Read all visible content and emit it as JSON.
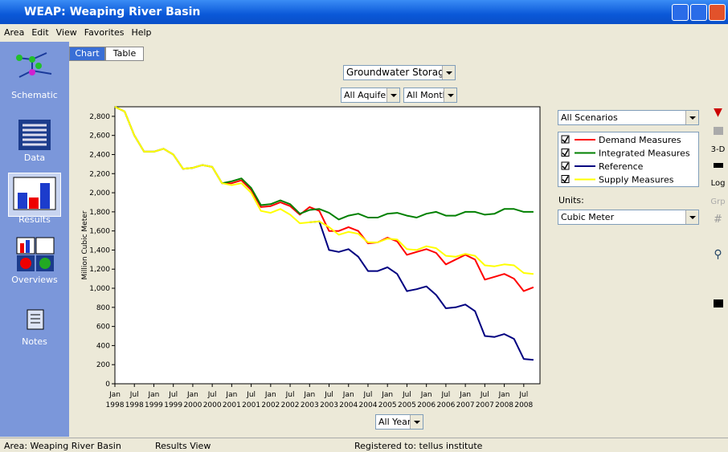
{
  "window": {
    "title": "WEAP: Weaping River Basin"
  },
  "menu": [
    "Area",
    "Edit",
    "View",
    "Favorites",
    "Help"
  ],
  "sidebar": [
    "Schematic",
    "Data",
    "Results",
    "Overviews",
    "Notes"
  ],
  "tabs": [
    "Chart",
    "Table"
  ],
  "controls": {
    "variable": "Groundwater Storage",
    "aquifers": "All Aquifers",
    "months": "All Months",
    "years": "All Years",
    "scenarios": "All Scenarios",
    "units_label": "Units:",
    "units": "Cubic Meter"
  },
  "toolbar": [
    "3-D",
    "Log",
    "Grp"
  ],
  "status": [
    "Area: Weaping River Basin",
    "Results View",
    "Registered to: tellus institute"
  ],
  "chart_data": {
    "type": "line",
    "y_label": "Million Cubic Meter",
    "x": [
      0,
      3,
      6,
      9,
      12,
      15,
      18,
      21,
      24,
      27,
      30,
      33,
      36,
      39,
      42,
      45,
      48,
      51,
      54,
      57,
      60,
      63,
      66,
      69,
      72,
      75,
      78,
      81,
      84,
      87,
      90,
      93,
      96,
      99,
      102,
      105,
      108,
      111,
      114,
      117,
      120,
      123,
      126,
      129
    ],
    "xlim": [
      0,
      131
    ],
    "xticks": [
      {
        "value": 0,
        "label": "Jan",
        "year": "1998"
      },
      {
        "value": 6,
        "label": "Jul",
        "year": "1998"
      },
      {
        "value": 12,
        "label": "Jan",
        "year": "1999"
      },
      {
        "value": 18,
        "label": "Jul",
        "year": "1999"
      },
      {
        "value": 24,
        "label": "Jan",
        "year": "2000"
      },
      {
        "value": 30,
        "label": "Jul",
        "year": "2000"
      },
      {
        "value": 36,
        "label": "Jan",
        "year": "2001"
      },
      {
        "value": 42,
        "label": "Jul",
        "year": "2001"
      },
      {
        "value": 48,
        "label": "Jan",
        "year": "2002"
      },
      {
        "value": 54,
        "label": "Jul",
        "year": "2002"
      },
      {
        "value": 60,
        "label": "Jan",
        "year": "2003"
      },
      {
        "value": 66,
        "label": "Jul",
        "year": "2003"
      },
      {
        "value": 72,
        "label": "Jan",
        "year": "2004"
      },
      {
        "value": 78,
        "label": "Jul",
        "year": "2004"
      },
      {
        "value": 84,
        "label": "Jan",
        "year": "2005"
      },
      {
        "value": 90,
        "label": "Jul",
        "year": "2005"
      },
      {
        "value": 96,
        "label": "Jan",
        "year": "2006"
      },
      {
        "value": 102,
        "label": "Jul",
        "year": "2006"
      },
      {
        "value": 108,
        "label": "Jan",
        "year": "2007"
      },
      {
        "value": 114,
        "label": "Jul",
        "year": "2007"
      },
      {
        "value": 120,
        "label": "Jan",
        "year": "2008"
      },
      {
        "value": 126,
        "label": "Jul",
        "year": "2008"
      }
    ],
    "ylim": [
      0,
      2900
    ],
    "yticks": [
      0,
      200,
      400,
      600,
      800,
      {
        "value": 1000,
        "label": "1,000"
      },
      {
        "value": 1200,
        "label": "1,200"
      },
      {
        "value": 1400,
        "label": "1,400"
      },
      {
        "value": 1600,
        "label": "1,600"
      },
      {
        "value": 1800,
        "label": "1,800"
      },
      {
        "value": 2000,
        "label": "2,000"
      },
      {
        "value": 2200,
        "label": "2,200"
      },
      {
        "value": 2400,
        "label": "2,400"
      },
      {
        "value": 2600,
        "label": "2,600"
      },
      {
        "value": 2800,
        "label": "2,800"
      }
    ],
    "series": [
      {
        "name": "Demand Measures",
        "color": "#ff0000",
        "values": [
          2900,
          2850,
          2600,
          2430,
          2430,
          2460,
          2400,
          2250,
          2260,
          2290,
          2270,
          2100,
          2100,
          2130,
          2030,
          1850,
          1860,
          1900,
          1860,
          1770,
          1850,
          1810,
          1600,
          1600,
          1640,
          1600,
          1470,
          1480,
          1530,
          1490,
          1350,
          1380,
          1410,
          1370,
          1250,
          1300,
          1350,
          1300,
          1090,
          1120,
          1150,
          1100,
          970,
          1010
        ]
      },
      {
        "name": "Integrated Measures",
        "color": "#008000",
        "values": [
          2900,
          2850,
          2600,
          2430,
          2430,
          2460,
          2400,
          2250,
          2260,
          2290,
          2270,
          2100,
          2120,
          2150,
          2050,
          1870,
          1880,
          1920,
          1880,
          1780,
          1820,
          1830,
          1790,
          1720,
          1760,
          1780,
          1740,
          1740,
          1780,
          1790,
          1760,
          1740,
          1780,
          1800,
          1760,
          1760,
          1800,
          1800,
          1770,
          1780,
          1830,
          1830,
          1800,
          1800
        ]
      },
      {
        "name": "Reference",
        "color": "#000080",
        "values": [
          null,
          null,
          null,
          null,
          null,
          null,
          null,
          null,
          null,
          null,
          null,
          null,
          null,
          null,
          null,
          null,
          null,
          null,
          null,
          null,
          1690,
          1700,
          1400,
          1380,
          1410,
          1330,
          1180,
          1180,
          1220,
          1150,
          970,
          990,
          1020,
          930,
          790,
          800,
          830,
          760,
          500,
          490,
          520,
          470,
          260,
          250
        ]
      },
      {
        "name": "Supply Measures",
        "color": "#ffff00",
        "values": [
          2900,
          2850,
          2600,
          2430,
          2430,
          2460,
          2400,
          2250,
          2260,
          2290,
          2270,
          2100,
          2080,
          2100,
          2000,
          1810,
          1790,
          1830,
          1770,
          1680,
          1690,
          1700,
          1640,
          1560,
          1590,
          1570,
          1480,
          1480,
          1520,
          1510,
          1410,
          1400,
          1440,
          1420,
          1340,
          1330,
          1360,
          1340,
          1240,
          1230,
          1250,
          1240,
          1160,
          1150
        ]
      }
    ]
  }
}
